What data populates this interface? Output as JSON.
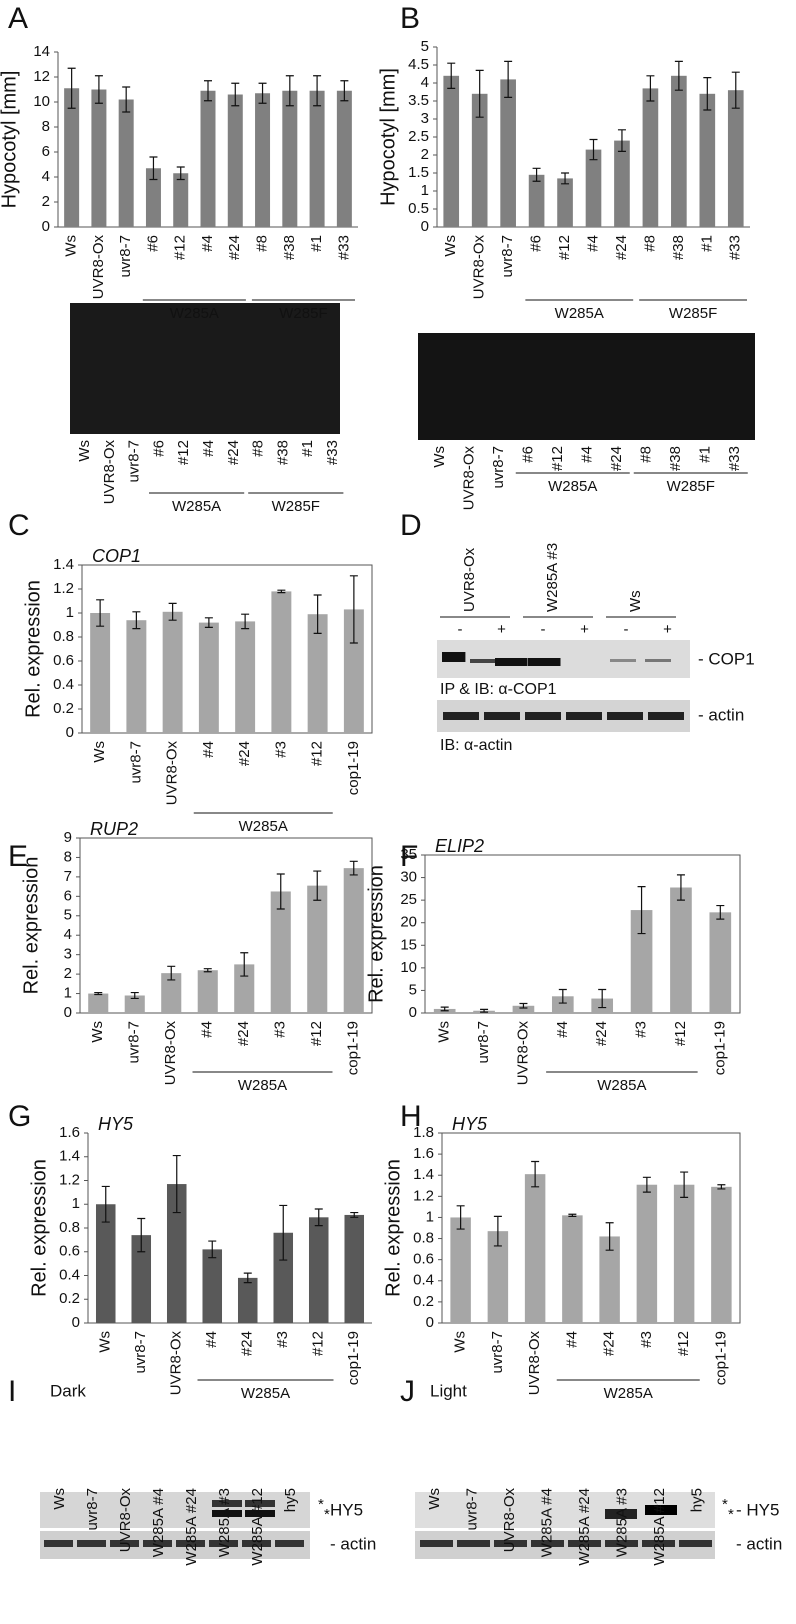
{
  "panels": [
    "A",
    "B",
    "C",
    "D",
    "E",
    "F",
    "G",
    "H",
    "I",
    "J"
  ],
  "chart_data": [
    {
      "type": "bar",
      "ylabel": "Hypocotyl [mm]",
      "categories": [
        "Ws",
        "UVR8-Ox",
        "uvr8-7",
        "#6",
        "#12",
        "#4",
        "#24",
        "#8",
        "#38",
        "#1",
        "#33"
      ],
      "values": [
        11.1,
        11.0,
        10.2,
        4.7,
        4.3,
        10.9,
        10.6,
        10.7,
        10.9,
        10.9,
        10.9
      ],
      "errors": [
        1.6,
        1.1,
        1.0,
        0.9,
        0.5,
        0.8,
        0.9,
        0.8,
        1.2,
        1.2,
        0.8
      ],
      "groups": [
        "W285A",
        "W285F"
      ],
      "color": "#808080",
      "ylim": [
        0,
        14
      ],
      "yticks": [
        0,
        2,
        4,
        6,
        8,
        10,
        12,
        14
      ],
      "frame": false
    },
    {
      "type": "bar",
      "ylabel": "Hypocotyl [mm]",
      "categories": [
        "Ws",
        "UVR8-Ox",
        "uvr8-7",
        "#6",
        "#12",
        "#4",
        "#24",
        "#8",
        "#38",
        "#1",
        "#33"
      ],
      "values": [
        4.2,
        3.7,
        4.1,
        1.45,
        1.35,
        2.15,
        2.4,
        3.85,
        4.2,
        3.7,
        3.8
      ],
      "errors": [
        0.35,
        0.65,
        0.5,
        0.18,
        0.15,
        0.28,
        0.3,
        0.35,
        0.4,
        0.45,
        0.5
      ],
      "groups": [
        "W285A",
        "W285F"
      ],
      "color": "#808080",
      "ylim": [
        0,
        5
      ],
      "yticks": [
        0,
        0.5,
        1,
        1.5,
        2,
        2.5,
        3,
        3.5,
        4,
        4.5,
        5
      ],
      "frame": false
    },
    {
      "type": "bar",
      "title": "COP1",
      "ylabel": "Rel. expression",
      "categories": [
        "Ws",
        "uvr8-7",
        "UVR8-Ox",
        "#4",
        "#24",
        "#3",
        "#12",
        "cop1-19"
      ],
      "values": [
        1.0,
        0.94,
        1.01,
        0.92,
        0.93,
        1.18,
        0.99,
        1.03
      ],
      "errors": [
        0.11,
        0.07,
        0.07,
        0.04,
        0.06,
        0.01,
        0.16,
        0.28
      ],
      "groups": [
        "W285A"
      ],
      "color": "#a6a6a6",
      "ylim": [
        0,
        1.4
      ],
      "yticks": [
        0,
        0.2,
        0.4,
        0.6,
        0.8,
        1,
        1.2,
        1.4
      ],
      "frame": true
    },
    {
      "type": "bar",
      "title": "RUP2",
      "ylabel": "Rel. expression",
      "categories": [
        "Ws",
        "uvr8-7",
        "UVR8-Ox",
        "#4",
        "#24",
        "#3",
        "#12",
        "cop1-19"
      ],
      "values": [
        1.0,
        0.9,
        2.05,
        2.2,
        2.5,
        6.25,
        6.55,
        7.45
      ],
      "errors": [
        0.05,
        0.15,
        0.35,
        0.08,
        0.6,
        0.9,
        0.75,
        0.35
      ],
      "groups": [
        "W285A"
      ],
      "color": "#a6a6a6",
      "ylim": [
        0,
        9
      ],
      "yticks": [
        0,
        1,
        2,
        3,
        4,
        5,
        6,
        7,
        8,
        9
      ],
      "frame": true
    },
    {
      "type": "bar",
      "title": "ELIP2",
      "ylabel": "Rel. expression",
      "categories": [
        "Ws",
        "uvr8-7",
        "UVR8-Ox",
        "#4",
        "#24",
        "#3",
        "#12",
        "cop1-19"
      ],
      "values": [
        0.9,
        0.5,
        1.6,
        3.7,
        3.2,
        22.8,
        27.8,
        22.3
      ],
      "errors": [
        0.4,
        0.3,
        0.5,
        1.5,
        2.0,
        5.2,
        2.8,
        1.5
      ],
      "groups": [
        "W285A"
      ],
      "color": "#a6a6a6",
      "ylim": [
        0,
        35
      ],
      "yticks": [
        0,
        5,
        10,
        15,
        20,
        25,
        30,
        35
      ],
      "frame": true
    },
    {
      "type": "bar",
      "title": "HY5",
      "ylabel": "Rel. expression",
      "categories": [
        "Ws",
        "uvr8-7",
        "UVR8-Ox",
        "#4",
        "#24",
        "#3",
        "#12",
        "cop1-19"
      ],
      "values": [
        1.0,
        0.74,
        1.17,
        0.62,
        0.38,
        0.76,
        0.89,
        0.91
      ],
      "errors": [
        0.15,
        0.14,
        0.24,
        0.07,
        0.04,
        0.23,
        0.07,
        0.02
      ],
      "groups": [
        "W285A"
      ],
      "color": "#595959",
      "ylim": [
        0,
        1.6
      ],
      "yticks": [
        0,
        0.2,
        0.4,
        0.6,
        0.8,
        1,
        1.2,
        1.4,
        1.6
      ],
      "frame": false
    },
    {
      "type": "bar",
      "title": "HY5",
      "ylabel": "Rel. expression",
      "categories": [
        "Ws",
        "uvr8-7",
        "UVR8-Ox",
        "#4",
        "#24",
        "#3",
        "#12",
        "cop1-19"
      ],
      "values": [
        1.0,
        0.87,
        1.41,
        1.02,
        0.82,
        1.31,
        1.31,
        1.29
      ],
      "errors": [
        0.11,
        0.14,
        0.12,
        0.01,
        0.13,
        0.07,
        0.12,
        0.02
      ],
      "groups": [
        "W285A"
      ],
      "color": "#a6a6a6",
      "ylim": [
        0,
        1.8
      ],
      "yticks": [
        0,
        0.2,
        0.4,
        0.6,
        0.8,
        1,
        1.2,
        1.4,
        1.6,
        1.8
      ],
      "frame": true
    }
  ],
  "photos": [
    {
      "labels": [
        "Ws",
        "UVR8-Ox",
        "uvr8-7",
        "#6",
        "#12",
        "#4",
        "#24",
        "#8",
        "#38",
        "#1",
        "#33"
      ],
      "groups": [
        "W285A",
        "W285F"
      ]
    },
    {
      "labels": [
        "Ws",
        "UVR8-Ox",
        "uvr8-7",
        "#6",
        "#12",
        "#4",
        "#24",
        "#8",
        "#38",
        "#1",
        "#33"
      ],
      "groups": [
        "W285A",
        "W285F"
      ]
    }
  ],
  "blot_d": {
    "lanes": [
      "UVR8-Ox",
      "W285A #3",
      "Ws"
    ],
    "treatments": [
      "-",
      "+",
      "-",
      "+",
      "-",
      "+"
    ],
    "bands": [
      "- COP1",
      "- actin"
    ],
    "captions": [
      "IP & IB: α-COP1",
      "IB: α-actin"
    ]
  },
  "blots_hy5": [
    {
      "condition": "Dark",
      "lanes": [
        "Ws",
        "uvr8-7",
        "UVR8-Ox",
        "W285A #4",
        "W285A #24",
        "W285A #3",
        "W285A #12",
        "hy5"
      ],
      "markers": [
        "*",
        "*"
      ],
      "bands": [
        "HY5",
        "- actin"
      ]
    },
    {
      "condition": "Light",
      "lanes": [
        "Ws",
        "uvr8-7",
        "UVR8-Ox",
        "W285A #4",
        "W285A #24",
        "W285A #3",
        "W285A #12",
        "hy5"
      ],
      "markers": [
        "*",
        "*"
      ],
      "bands": [
        "- HY5",
        "- actin"
      ]
    }
  ]
}
